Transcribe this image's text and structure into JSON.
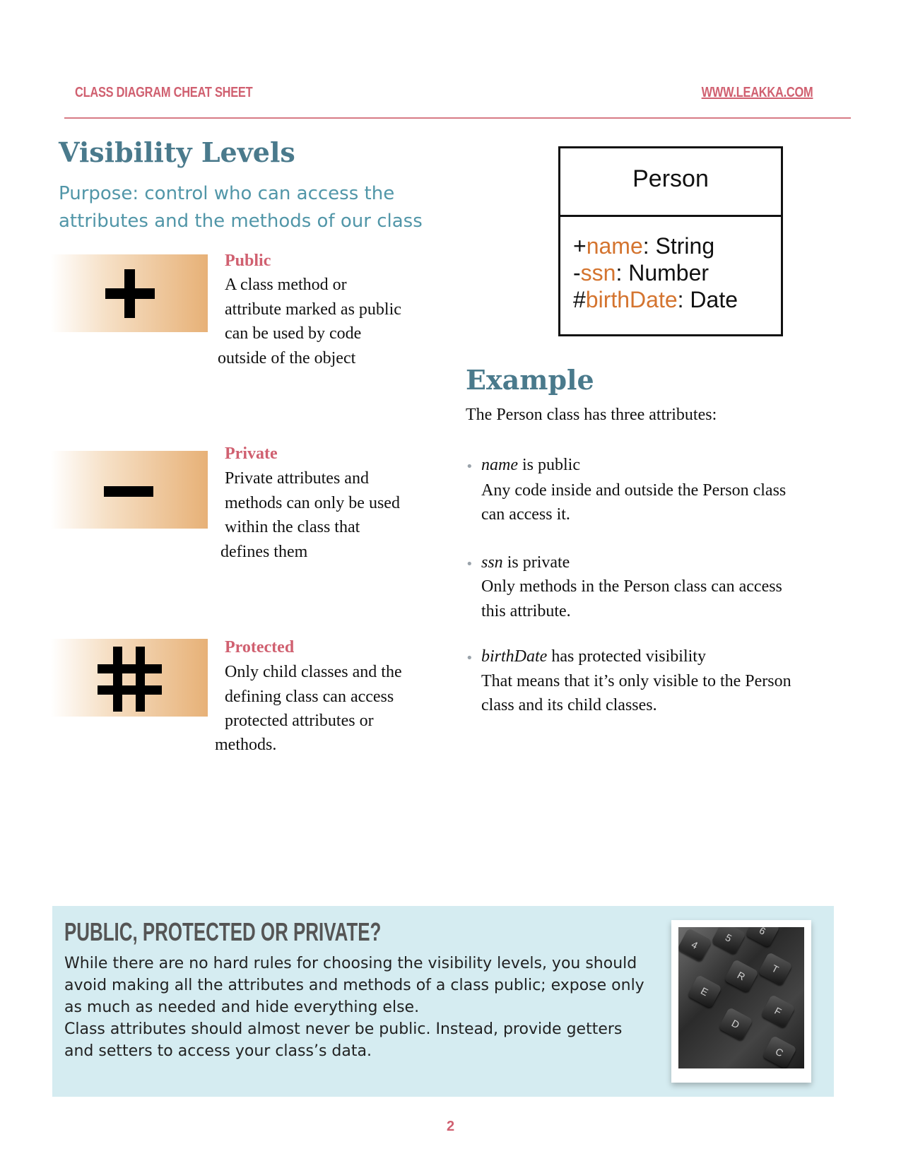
{
  "header": {
    "left": "CLASS DIAGRAM CHEAT SHEET",
    "right": "WWW.LEAKKA.COM"
  },
  "visibility": {
    "title": "Visibility Levels",
    "purpose": "Purpose: control who can access the attributes and the methods of our class",
    "items": [
      {
        "symbol": "+",
        "title": "Public",
        "lines": [
          "A class method or",
          "attribute marked as public",
          "can be used by code",
          "outside of the object"
        ]
      },
      {
        "symbol": "−",
        "title": "Private",
        "lines": [
          "Private attributes and",
          "methods can only be used",
          "within the class that",
          "defines them"
        ]
      },
      {
        "symbol": "#",
        "title": "Protected",
        "lines": [
          "Only child classes and the",
          "defining class can access",
          "protected attributes or",
          "methods."
        ]
      }
    ]
  },
  "class_box": {
    "name": "Person",
    "attributes": [
      {
        "prefix": "+",
        "name": "name",
        "type": ": String"
      },
      {
        "prefix": "-",
        "name": "ssn",
        "type": ": Number"
      },
      {
        "prefix": "#",
        "name": "birthDate",
        "type": ": Date"
      }
    ],
    "attr_name_color": "#d4742f"
  },
  "example": {
    "title": "Example",
    "intro": "The Person class has three attributes:",
    "bullets": [
      {
        "term": "name",
        "rest": " is public",
        "lines": [
          "Any code inside and outside the Person class",
          "can access it."
        ]
      },
      {
        "term": "ssn",
        "rest": " is private",
        "lines": [
          "Only methods in the Person class can access",
          "this attribute."
        ]
      },
      {
        "term": "birthDate",
        "rest": " has protected visibility",
        "lines": [
          "That means that it’s only visible to the Person",
          "class and its child classes."
        ]
      }
    ]
  },
  "tip": {
    "title": "PUBLIC, PROTECTED OR PRIVATE?",
    "paragraph1": "While there are no hard rules for choosing the visibility levels, you should avoid making all the attributes and methods of a class public; expose only as much as needed and hide everything else.",
    "paragraph2": "Class attributes should almost never be public. Instead, provide getters and setters to access your class’s data.",
    "keys": [
      "4",
      "5",
      "6",
      "R",
      "T",
      "E",
      "F",
      "D",
      "C"
    ]
  },
  "page_number": "2",
  "colors": {
    "accent_red": "#d06070",
    "heading_teal": "#4a7a8c",
    "purpose_teal": "#5196a8",
    "tip_bg": "#d5ecf1",
    "gradient_orange": "#e7b177"
  }
}
